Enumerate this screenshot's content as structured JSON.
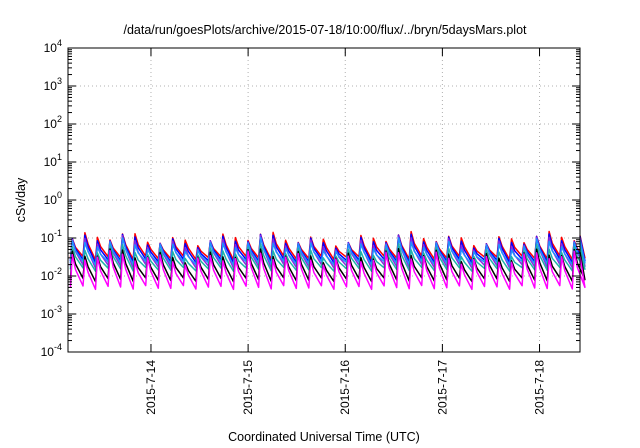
{
  "chart_data": {
    "type": "line",
    "title": "/data/run/goesPlots/archive/2015-07-18/10:00/flux/../bryn/5daysMars.plot",
    "xlabel": "Coordinated Universal Time (UTC)",
    "ylabel": "cSv/day",
    "yscale": "log",
    "ylim": [
      0.0001,
      10000
    ],
    "xlim": [
      "2015-07-13 03:30",
      "2015-07-18 10:00"
    ],
    "grid": true,
    "y_ticks": [
      {
        "base": "10",
        "exp": "4"
      },
      {
        "base": "10",
        "exp": "3"
      },
      {
        "base": "10",
        "exp": "2"
      },
      {
        "base": "10",
        "exp": "1"
      },
      {
        "base": "10",
        "exp": "0"
      },
      {
        "base": "10",
        "exp": "-1"
      },
      {
        "base": "10",
        "exp": "-2"
      },
      {
        "base": "10",
        "exp": "-3"
      },
      {
        "base": "10",
        "exp": "-4"
      }
    ],
    "x_ticks": [
      "2015-7-14",
      "2015-7-15",
      "2015-7-16",
      "2015-7-17",
      "2015-7-18"
    ],
    "series": [
      {
        "color": "#ff0000",
        "peak": 0.095,
        "trough": 0.03
      },
      {
        "color": "#0000ff",
        "peak": 0.085,
        "trough": 0.025
      },
      {
        "color": "#8a2be2",
        "peak": 0.075,
        "trough": 0.018
      },
      {
        "color": "#1e90ff",
        "peak": 0.065,
        "trough": 0.022
      },
      {
        "color": "#20b2aa",
        "peak": 0.045,
        "trough": 0.015
      },
      {
        "color": "#000000",
        "peak": 0.035,
        "trough": 0.008
      },
      {
        "color": "#ff00ff",
        "peak": 0.03,
        "trough": 0.005
      }
    ]
  }
}
